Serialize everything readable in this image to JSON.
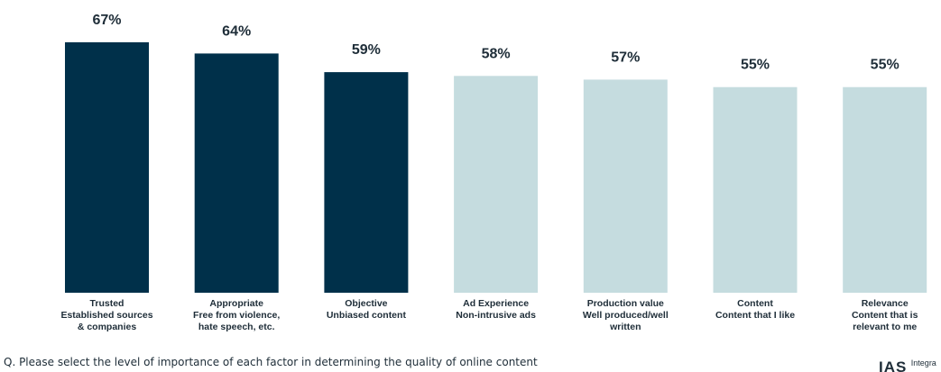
{
  "chart_data": {
    "type": "bar",
    "categories": [
      [
        "Trusted",
        "Established sources",
        "& companies"
      ],
      [
        "Appropriate",
        "Free from violence,",
        "hate speech, etc."
      ],
      [
        "Objective",
        "Unbiased content"
      ],
      [
        "Ad Experience",
        "Non-intrusive ads"
      ],
      [
        "Production value",
        "Well produced/well",
        "written"
      ],
      [
        "Content",
        "Content that I like"
      ],
      [
        "Relevance",
        "Content that is",
        "relevant to me"
      ]
    ],
    "values": [
      67,
      64,
      59,
      58,
      57,
      55,
      55
    ],
    "value_labels": [
      "67%",
      "64%",
      "59%",
      "58%",
      "57%",
      "55%",
      "55%"
    ],
    "bar_colors": [
      "#00304a",
      "#00304a",
      "#00304a",
      "#c5dcdf",
      "#c5dcdf",
      "#c5dcdf",
      "#c5dcdf"
    ],
    "ylim": [
      0,
      70
    ],
    "grid": false,
    "legend": "none"
  },
  "footnote": "Q. Please select the level of importance of each factor in determining the quality of online content",
  "logo": {
    "mark": "IAS",
    "word": "Integra"
  },
  "colors": {
    "highlight": "#00304a",
    "muted": "#c5dcdf",
    "text": "#1e2d38"
  }
}
